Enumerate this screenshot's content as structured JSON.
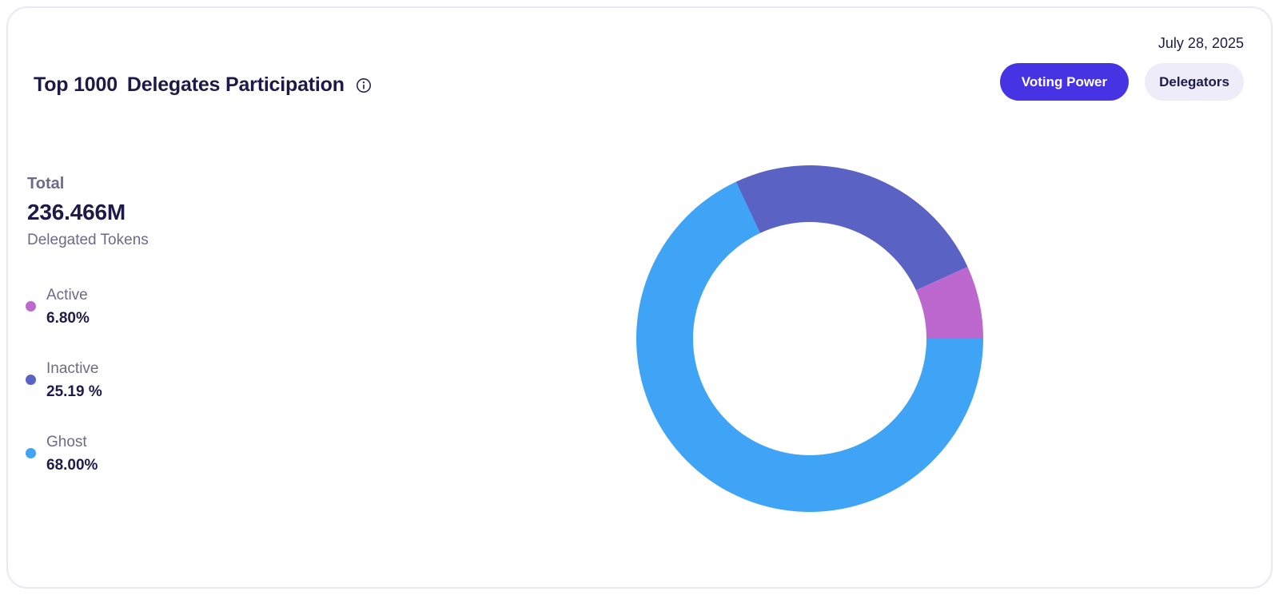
{
  "header": {
    "date": "July 28, 2025",
    "title_prefix": "Top 1000",
    "title_main": "Delegates Participation",
    "info_icon": "info-circle-icon",
    "toggle": {
      "voting_power_label": "Voting Power",
      "delegators_label": "Delegators",
      "selected": "Voting Power"
    }
  },
  "summary": {
    "total_label": "Total",
    "total_value": "236.466M",
    "total_sub": "Delegated Tokens"
  },
  "chart_data": {
    "type": "pie",
    "variant": "donut",
    "title": "Top 1000 Delegates Participation",
    "date": "July 28, 2025",
    "total_label": "Total",
    "total_value": "236.466M",
    "total_unit": "Delegated Tokens",
    "selected_mode": "Voting Power",
    "legend_position": "left",
    "segments": [
      {
        "label": "Active",
        "value": 6.8,
        "display": "6.80%",
        "color": "#bd68ce"
      },
      {
        "label": "Inactive",
        "value": 25.19,
        "display": "25.19 %",
        "color": "#5a63c4"
      },
      {
        "label": "Ghost",
        "value": 68.0,
        "display": "68.00%",
        "color": "#3fa3f6"
      }
    ],
    "layout": {
      "start_angle_deg": 90,
      "clockwise": true,
      "draw_order": "last-to-first",
      "outer_radius_px": 217,
      "inner_radius_px": 146
    }
  },
  "colors": {
    "accent": "#4634e4",
    "accent_soft": "#edecf8",
    "text_dark": "#1e1b4b",
    "text_muted": "#6e6a87",
    "card_border": "#e9e8f4"
  }
}
